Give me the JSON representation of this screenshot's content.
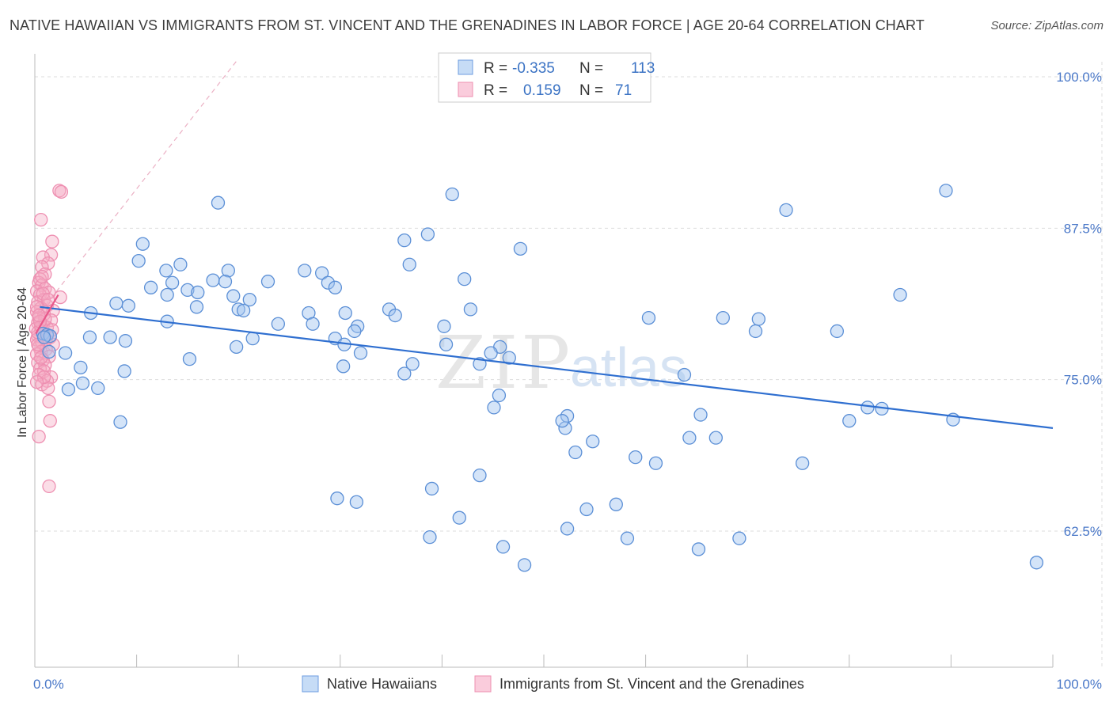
{
  "header": {
    "title": "NATIVE HAWAIIAN VS IMMIGRANTS FROM ST. VINCENT AND THE GRENADINES IN LABOR FORCE | AGE 20-64 CORRELATION CHART",
    "source": "Source: ZipAtlas.com"
  },
  "watermark": {
    "zip": "ZIP",
    "atlas": "atlas"
  },
  "colors": {
    "blue": "#4a86d8",
    "blue_fill": "rgba(160,196,240,0.45)",
    "pink": "#e8578a",
    "pink_fill": "rgba(246,170,196,0.40)",
    "grid": "#dddddd",
    "tick_label": "#4a78c8"
  },
  "chart_data": {
    "type": "scatter",
    "xlabel": "",
    "ylabel": "In Labor Force | Age 20-64",
    "xlim": [
      0,
      100
    ],
    "ylim": [
      50,
      100
    ],
    "x_tick_labels": [
      {
        "value": 0,
        "label": "0.0%"
      },
      {
        "value": 100,
        "label": "100.0%"
      }
    ],
    "y_tick_labels": [
      {
        "value": 100,
        "label": "100.0%"
      },
      {
        "value": 87.5,
        "label": "87.5%"
      },
      {
        "value": 75,
        "label": "75.0%"
      },
      {
        "value": 62.5,
        "label": "62.5%"
      }
    ],
    "grid": true,
    "legend_top": [
      {
        "r_label": "R = ",
        "r_value": "-0.335",
        "n_label": "N = ",
        "n_value": "113"
      },
      {
        "r_label": "R = ",
        "r_value": "0.159",
        "n_label": "N = ",
        "n_value": "71"
      }
    ],
    "series": [
      {
        "name": "Native Hawaiians",
        "trend": {
          "x": [
            0.5,
            100
          ],
          "y": [
            81.0,
            71.0
          ]
        },
        "points": [
          [
            89.5,
            90.6
          ],
          [
            73.8,
            89.0
          ],
          [
            41.0,
            90.3
          ],
          [
            18.0,
            89.6
          ],
          [
            38.6,
            87.0
          ],
          [
            36.3,
            86.5
          ],
          [
            10.6,
            86.2
          ],
          [
            47.7,
            85.8
          ],
          [
            10.2,
            84.8
          ],
          [
            14.3,
            84.5
          ],
          [
            36.8,
            84.5
          ],
          [
            12.9,
            84.0
          ],
          [
            19.0,
            84.0
          ],
          [
            26.5,
            84.0
          ],
          [
            28.2,
            83.8
          ],
          [
            42.2,
            83.3
          ],
          [
            17.5,
            83.2
          ],
          [
            18.7,
            83.1
          ],
          [
            22.9,
            83.1
          ],
          [
            13.5,
            83.0
          ],
          [
            28.8,
            83.0
          ],
          [
            11.4,
            82.6
          ],
          [
            29.5,
            82.6
          ],
          [
            15.0,
            82.4
          ],
          [
            16.0,
            82.2
          ],
          [
            13.0,
            82.0
          ],
          [
            85.0,
            82.0
          ],
          [
            19.5,
            81.9
          ],
          [
            21.1,
            81.6
          ],
          [
            8.0,
            81.3
          ],
          [
            9.2,
            81.1
          ],
          [
            15.9,
            81.0
          ],
          [
            20.0,
            80.8
          ],
          [
            34.8,
            80.8
          ],
          [
            42.8,
            80.8
          ],
          [
            20.5,
            80.7
          ],
          [
            5.5,
            80.5
          ],
          [
            26.9,
            80.5
          ],
          [
            30.5,
            80.5
          ],
          [
            35.4,
            80.3
          ],
          [
            60.3,
            80.1
          ],
          [
            67.6,
            80.1
          ],
          [
            71.1,
            80.0
          ],
          [
            13.0,
            79.8
          ],
          [
            23.9,
            79.6
          ],
          [
            27.3,
            79.6
          ],
          [
            31.7,
            79.4
          ],
          [
            40.2,
            79.4
          ],
          [
            31.4,
            79.0
          ],
          [
            70.8,
            79.0
          ],
          [
            78.8,
            79.0
          ],
          [
            0.8,
            78.8
          ],
          [
            1.2,
            78.7
          ],
          [
            1.5,
            78.6
          ],
          [
            0.9,
            78.5
          ],
          [
            5.4,
            78.5
          ],
          [
            7.4,
            78.5
          ],
          [
            21.4,
            78.4
          ],
          [
            29.5,
            78.4
          ],
          [
            8.9,
            78.2
          ],
          [
            30.4,
            77.9
          ],
          [
            40.4,
            77.9
          ],
          [
            19.8,
            77.7
          ],
          [
            45.7,
            77.7
          ],
          [
            1.4,
            77.3
          ],
          [
            3.0,
            77.2
          ],
          [
            32.0,
            77.2
          ],
          [
            44.8,
            77.2
          ],
          [
            46.6,
            76.8
          ],
          [
            15.2,
            76.7
          ],
          [
            37.1,
            76.3
          ],
          [
            43.7,
            76.3
          ],
          [
            30.3,
            76.1
          ],
          [
            4.5,
            76.0
          ],
          [
            8.8,
            75.7
          ],
          [
            36.3,
            75.5
          ],
          [
            63.8,
            75.4
          ],
          [
            4.7,
            74.7
          ],
          [
            6.2,
            74.3
          ],
          [
            3.3,
            74.2
          ],
          [
            45.6,
            73.7
          ],
          [
            45.1,
            72.7
          ],
          [
            83.2,
            72.6
          ],
          [
            52.3,
            72.0
          ],
          [
            65.4,
            72.1
          ],
          [
            80.0,
            71.6
          ],
          [
            90.2,
            71.7
          ],
          [
            8.4,
            71.5
          ],
          [
            52.1,
            71.0
          ],
          [
            54.8,
            69.9
          ],
          [
            64.3,
            70.2
          ],
          [
            66.9,
            70.2
          ],
          [
            59.0,
            68.6
          ],
          [
            75.4,
            68.1
          ],
          [
            61.0,
            68.1
          ],
          [
            43.7,
            67.1
          ],
          [
            39.0,
            66.0
          ],
          [
            29.7,
            65.2
          ],
          [
            31.6,
            64.9
          ],
          [
            57.1,
            64.7
          ],
          [
            52.3,
            62.7
          ],
          [
            38.8,
            62.0
          ],
          [
            58.2,
            61.9
          ],
          [
            46.0,
            61.2
          ],
          [
            65.2,
            61.0
          ],
          [
            69.2,
            61.9
          ],
          [
            48.1,
            59.7
          ],
          [
            98.4,
            59.9
          ],
          [
            54.2,
            64.3
          ],
          [
            53.1,
            69.0
          ],
          [
            81.8,
            72.7
          ],
          [
            51.8,
            71.6
          ],
          [
            41.7,
            63.6
          ]
        ]
      },
      {
        "name": "Immigrants from St. Vincent and the Grenadines",
        "trend": {
          "x": [
            0.1,
            2.3
          ],
          "y": [
            78.8,
            82.0
          ]
        },
        "points": [
          [
            2.4,
            90.6
          ],
          [
            2.6,
            90.5
          ],
          [
            0.6,
            88.2
          ],
          [
            1.7,
            86.4
          ],
          [
            1.6,
            85.3
          ],
          [
            0.8,
            85.1
          ],
          [
            1.3,
            84.6
          ],
          [
            0.7,
            84.3
          ],
          [
            1.0,
            83.7
          ],
          [
            0.5,
            83.3
          ],
          [
            0.4,
            83.0
          ],
          [
            0.7,
            82.8
          ],
          [
            1.0,
            82.5
          ],
          [
            1.4,
            82.2
          ],
          [
            0.2,
            82.3
          ],
          [
            0.5,
            82.0
          ],
          [
            2.5,
            81.8
          ],
          [
            0.9,
            81.6
          ],
          [
            0.3,
            81.4
          ],
          [
            1.2,
            81.1
          ],
          [
            0.6,
            80.9
          ],
          [
            1.8,
            80.7
          ],
          [
            0.2,
            80.6
          ],
          [
            0.9,
            80.4
          ],
          [
            0.4,
            80.1
          ],
          [
            1.6,
            79.9
          ],
          [
            0.3,
            79.7
          ],
          [
            0.8,
            79.5
          ],
          [
            1.2,
            79.3
          ],
          [
            0.1,
            79.2
          ],
          [
            0.6,
            79.0
          ],
          [
            0.9,
            78.8
          ],
          [
            0.3,
            78.6
          ],
          [
            1.5,
            78.5
          ],
          [
            0.2,
            78.3
          ],
          [
            0.7,
            78.1
          ],
          [
            1.8,
            77.9
          ],
          [
            0.4,
            77.7
          ],
          [
            1.1,
            77.5
          ],
          [
            0.6,
            77.3
          ],
          [
            0.2,
            77.1
          ],
          [
            1.4,
            76.9
          ],
          [
            0.8,
            76.6
          ],
          [
            0.3,
            76.4
          ],
          [
            1.0,
            76.2
          ],
          [
            0.5,
            75.9
          ],
          [
            0.9,
            75.7
          ],
          [
            0.4,
            75.4
          ],
          [
            1.6,
            75.2
          ],
          [
            1.2,
            74.9
          ],
          [
            0.7,
            74.6
          ],
          [
            1.3,
            74.3
          ],
          [
            1.4,
            73.2
          ],
          [
            1.5,
            71.6
          ],
          [
            0.4,
            70.3
          ],
          [
            1.4,
            66.2
          ],
          [
            0.3,
            78.9
          ],
          [
            0.6,
            79.4
          ],
          [
            1.0,
            80.0
          ],
          [
            0.2,
            81.0
          ],
          [
            0.8,
            82.1
          ],
          [
            0.5,
            79.8
          ],
          [
            1.1,
            78.3
          ],
          [
            0.3,
            77.9
          ],
          [
            0.6,
            76.8
          ],
          [
            0.9,
            75.2
          ],
          [
            0.2,
            74.8
          ],
          [
            0.7,
            83.5
          ],
          [
            1.3,
            81.6
          ],
          [
            0.4,
            80.3
          ],
          [
            1.7,
            79.1
          ]
        ]
      }
    ]
  },
  "bottom_legend": {
    "items": [
      "Native Hawaiians",
      "Immigrants from St. Vincent and the Grenadines"
    ]
  }
}
